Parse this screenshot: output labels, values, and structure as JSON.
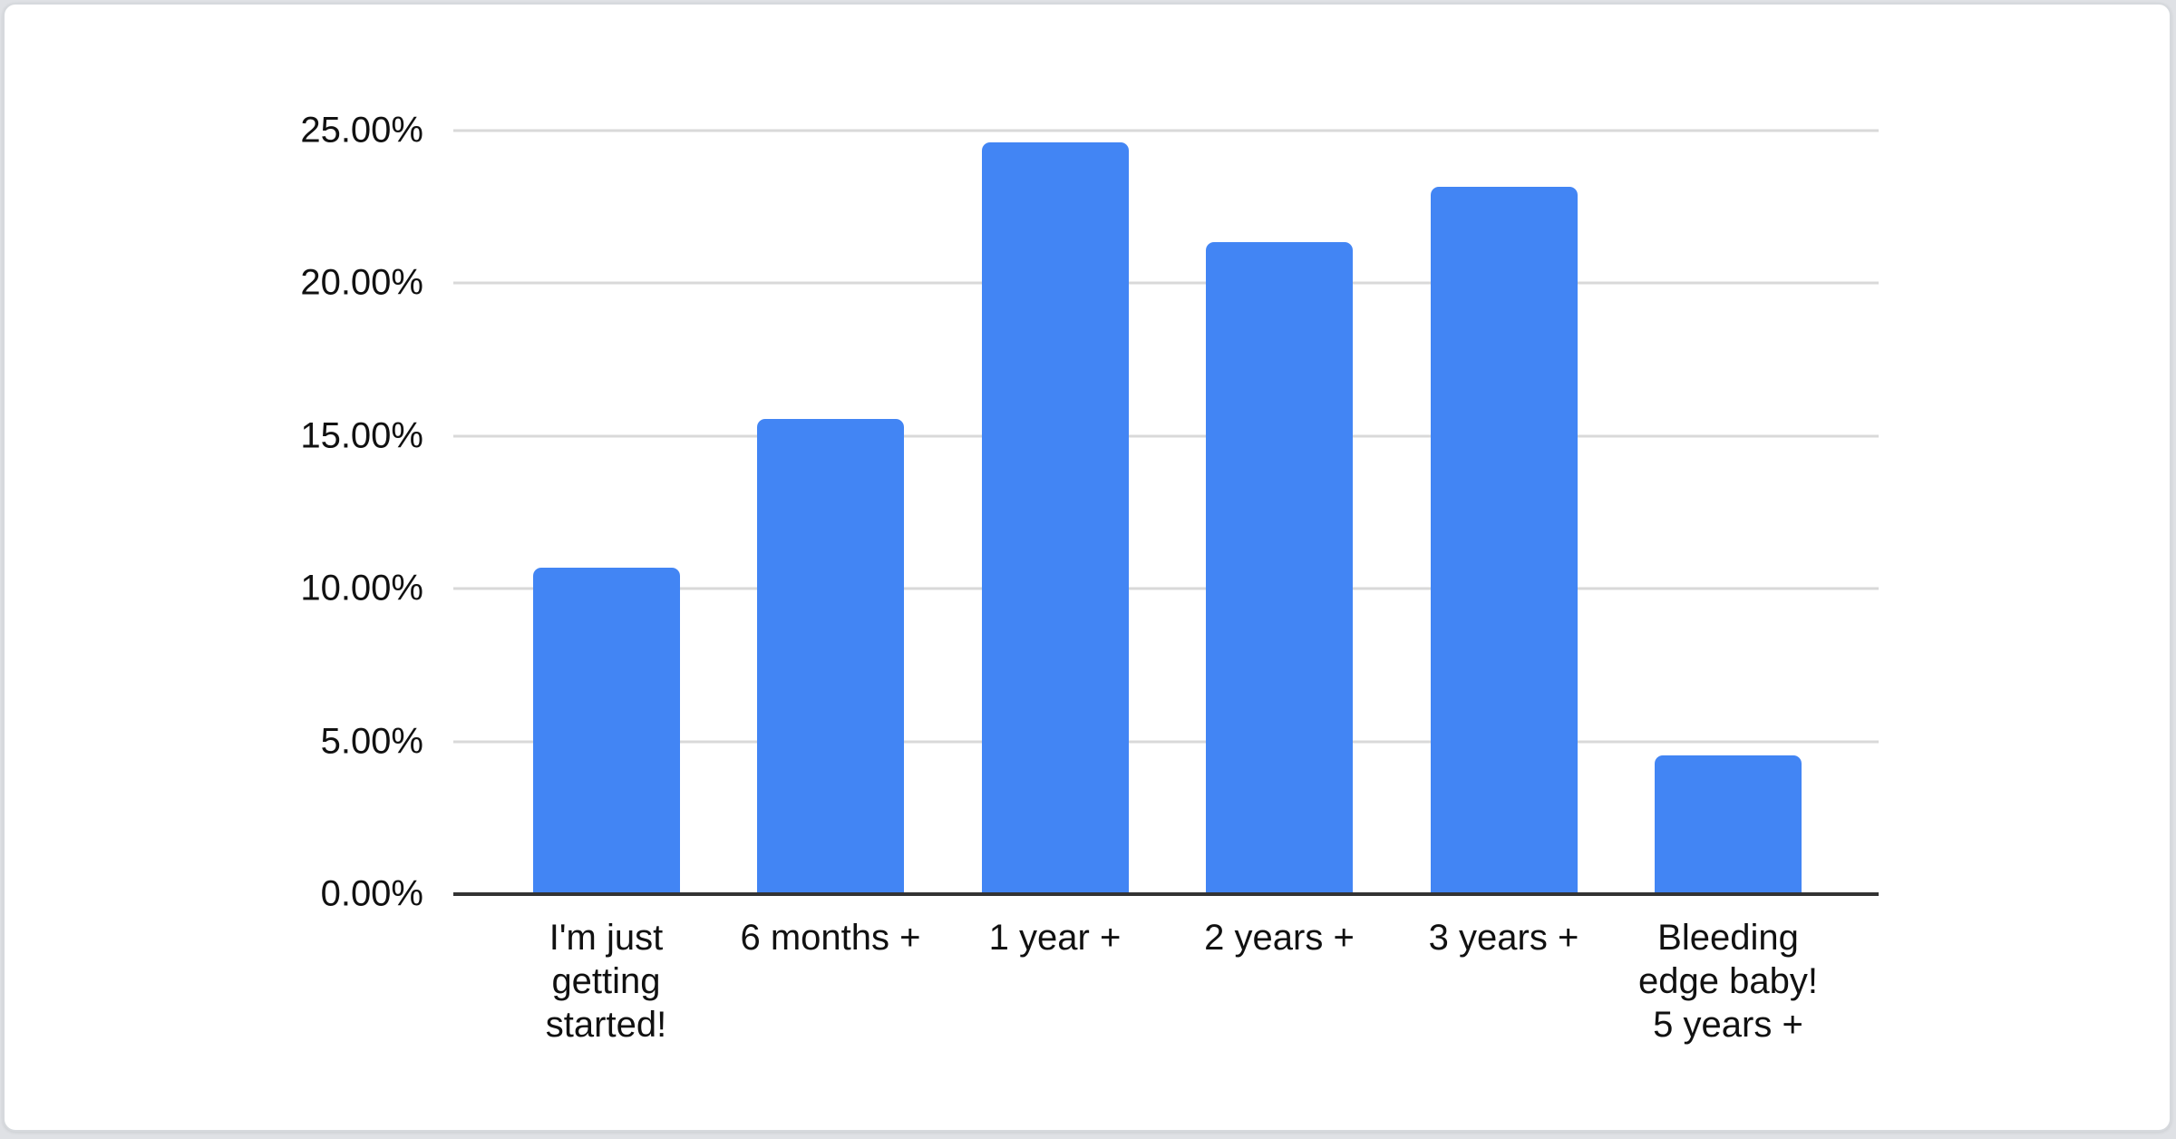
{
  "page": {
    "background_color": "#dfe1e5",
    "card_background_color": "#ffffff"
  },
  "chart_data": {
    "type": "bar",
    "title": "",
    "xlabel": "",
    "ylabel": "",
    "categories": [
      "I'm just\ngetting\nstarted!",
      "6 months +",
      "1 year +",
      "2 years +",
      "3 years +",
      "Bleeding\nedge baby!\n5 years +"
    ],
    "values": [
      10.7,
      15.55,
      24.6,
      21.35,
      23.15,
      4.55
    ],
    "value_unit": "percent",
    "ylim": [
      0,
      25
    ],
    "y_ticks": [
      {
        "value": 0,
        "label": "0.00%"
      },
      {
        "value": 5,
        "label": "5.00%"
      },
      {
        "value": 10,
        "label": "10.00%"
      },
      {
        "value": 15,
        "label": "15.00%"
      },
      {
        "value": 20,
        "label": "20.00%"
      },
      {
        "value": 25,
        "label": "25.00%"
      }
    ],
    "grid": true,
    "legend_position": "none",
    "bar_color": "#4285f4",
    "gridline_color": "#d9d9d9",
    "axis_line_color": "#333333",
    "label_color": "#111111"
  }
}
